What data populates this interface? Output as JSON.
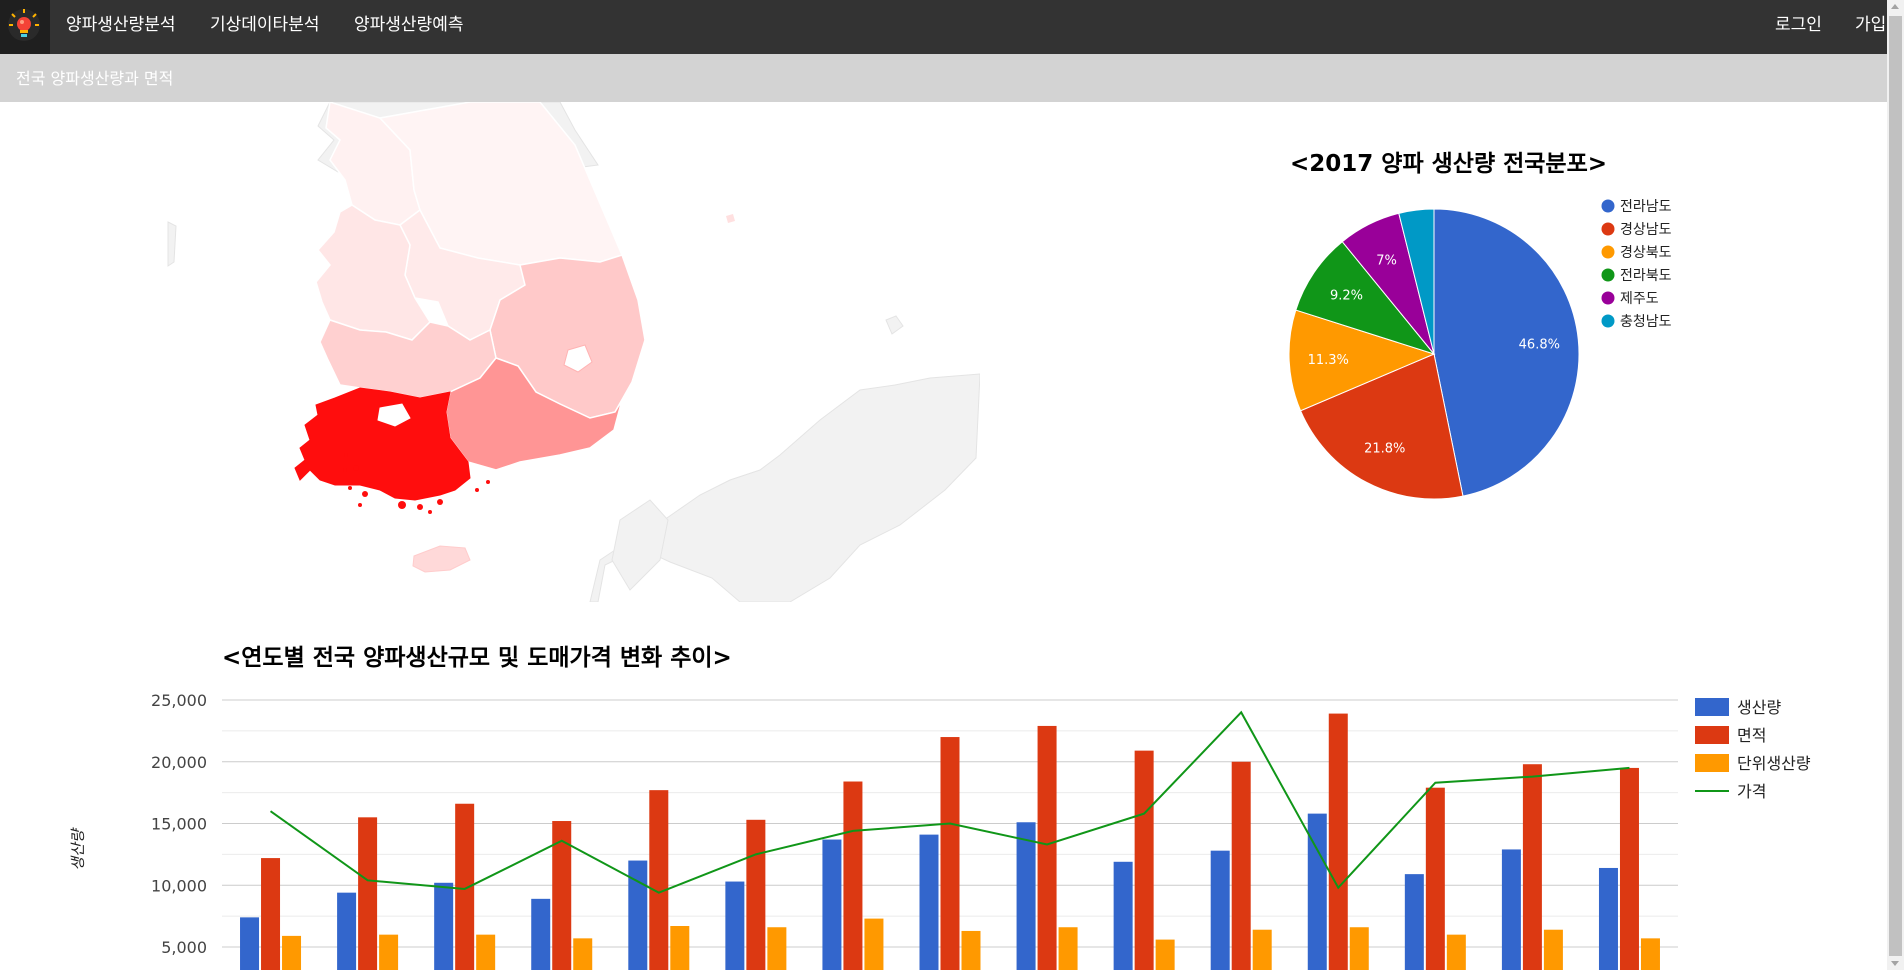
{
  "navbar": {
    "logo_icon": "lightbulb-icon",
    "menu": [
      "양파생산량분석",
      "기상데이타분석",
      "양파생산량예측"
    ],
    "login_label": "로그인",
    "signup_label": "가입",
    "background": "#333333"
  },
  "subheader": {
    "title": "전국 양파생산량과 면적"
  },
  "map": {
    "regions": [
      {
        "name": "전라남도",
        "level": 1.0,
        "color": "#ff0d0d"
      },
      {
        "name": "경상남도",
        "level": 0.5,
        "color": "#ff9595"
      },
      {
        "name": "경상북도",
        "level": 0.25,
        "color": "#ffc9c9"
      },
      {
        "name": "전라북도",
        "level": 0.2,
        "color": "#ffd0d0"
      },
      {
        "name": "충청남도",
        "level": 0.1,
        "color": "#ffe6e6"
      },
      {
        "name": "제주도",
        "level": 0.15,
        "color": "#ffd9d9"
      }
    ]
  },
  "pie_chart": {
    "title": "<2017 양파 생산량 전국분포>",
    "slice_labels": [
      "46.8%",
      "21.8%",
      "11.3%",
      "9.2%",
      "7%",
      ""
    ]
  },
  "combo_chart": {
    "title": "<연도별 전국 양파생산규모 및 도매가격 변화 추이>",
    "y_axis_title": "생산량",
    "y_tick_labels": [
      "25,000",
      "20,000",
      "15,000",
      "10,000",
      "5,000"
    ]
  },
  "chart_data": [
    {
      "type": "pie",
      "title": "<2017 양파 생산량 전국분포>",
      "legend_position": "right",
      "categories": [
        "전라남도",
        "경상남도",
        "경상북도",
        "전라북도",
        "제주도",
        "충청남도"
      ],
      "values": [
        46.8,
        21.8,
        11.3,
        9.2,
        7.0,
        3.9
      ],
      "colors": [
        "#3366cc",
        "#dc3912",
        "#ff9900",
        "#109618",
        "#990099",
        "#0099c6"
      ]
    },
    {
      "type": "bar",
      "title": "<연도별 전국 양파생산규모 및 도매가격 변화 추이>",
      "ylabel": "생산량",
      "ylim": [
        0,
        25000
      ],
      "y_ticks": [
        5000,
        10000,
        15000,
        20000,
        25000
      ],
      "grid": true,
      "legend_position": "right",
      "series": [
        {
          "name": "생산량",
          "type": "bar",
          "color": "#3366cc",
          "values": [
            7400,
            9400,
            10200,
            8900,
            12000,
            10300,
            13700,
            14100,
            15100,
            11900,
            12800,
            15800,
            10900,
            12900,
            11400
          ]
        },
        {
          "name": "면적",
          "type": "bar",
          "color": "#dc3912",
          "values": [
            12200,
            15500,
            16600,
            15200,
            17700,
            15300,
            18400,
            22000,
            22900,
            20900,
            20000,
            23900,
            17900,
            19800,
            19500
          ]
        },
        {
          "name": "단위생산량",
          "type": "bar",
          "color": "#ff9900",
          "values": [
            5900,
            6000,
            6000,
            5700,
            6700,
            6600,
            7300,
            6300,
            6600,
            5600,
            6400,
            6600,
            6000,
            6400,
            5700
          ]
        },
        {
          "name": "가격",
          "type": "line",
          "color": "#109618",
          "values": [
            16000,
            10400,
            9700,
            13600,
            9400,
            12500,
            14400,
            15000,
            13300,
            15800,
            24000,
            9800,
            18300,
            18800,
            19500
          ]
        }
      ]
    }
  ]
}
